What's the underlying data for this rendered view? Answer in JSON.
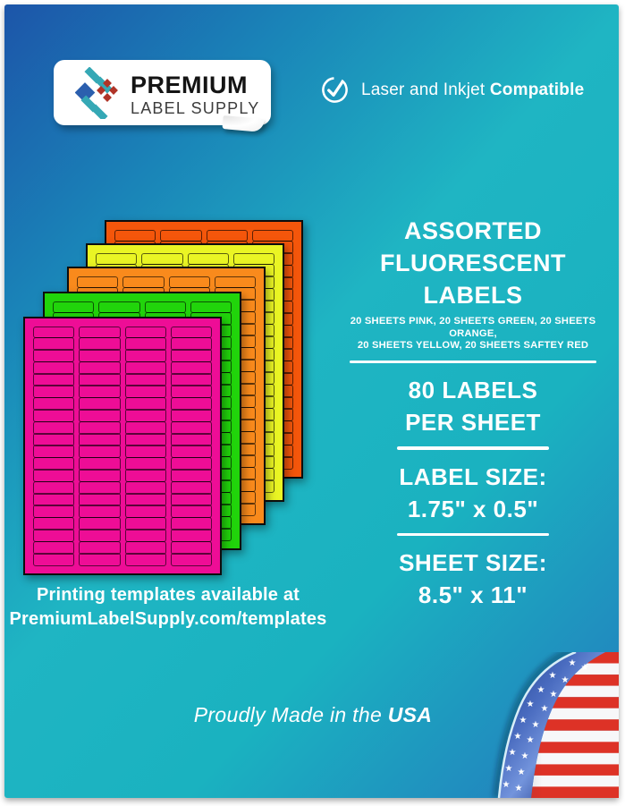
{
  "brand": {
    "name": "PREMIUM",
    "subname": "LABEL SUPPLY",
    "logo_icon": "diamond-grid-logo",
    "logo_colors": {
      "blue": "#2b5fae",
      "teal": "#35a8b5",
      "red": "#b03428"
    }
  },
  "compatibility": {
    "icon": "check-circle",
    "prefix": "Laser and Inkjet",
    "bold": "Compatible"
  },
  "headline": {
    "line1": "ASSORTED",
    "line2": "FLUORESCENT LABELS"
  },
  "subheadline": {
    "line1": "20 SHEETS PINK, 20 SHEETS GREEN, 20 SHEETS ORANGE,",
    "line2": "20 SHEETS YELLOW, 20 SHEETS SAFTEY RED"
  },
  "specs": [
    {
      "line1": "80 LABELS",
      "line2": "PER SHEET"
    },
    {
      "line1": "LABEL SIZE:",
      "line2": "1.75\" x 0.5\""
    },
    {
      "line1": "SHEET SIZE:",
      "line2": "8.5\" x 11\""
    }
  ],
  "templates_note": {
    "line1": "Printing templates available at",
    "line2": "PremiumLabelSupply.com/templates"
  },
  "footer": {
    "prefix": "Proudly Made in the",
    "bold": "USA"
  },
  "sheets": {
    "columns": 4,
    "rows": 20,
    "labels_per_sheet": 80,
    "colors": [
      {
        "name": "safety-red",
        "hex": "#f4560b"
      },
      {
        "name": "yellow",
        "hex": "#eaf524"
      },
      {
        "name": "orange",
        "hex": "#f98a1c"
      },
      {
        "name": "green",
        "hex": "#21d40b"
      },
      {
        "name": "pink",
        "hex": "#ee0d96"
      }
    ]
  },
  "background": {
    "blue": "#1c55a9",
    "teal": "#1fb5c3",
    "corner_blue": "#2478be"
  },
  "flag": {
    "description": "US flag with page curl",
    "red": "#dd3226",
    "white": "#f7f7f9",
    "blue_dark": "#203f8f",
    "blue_light": "#7394dc"
  }
}
